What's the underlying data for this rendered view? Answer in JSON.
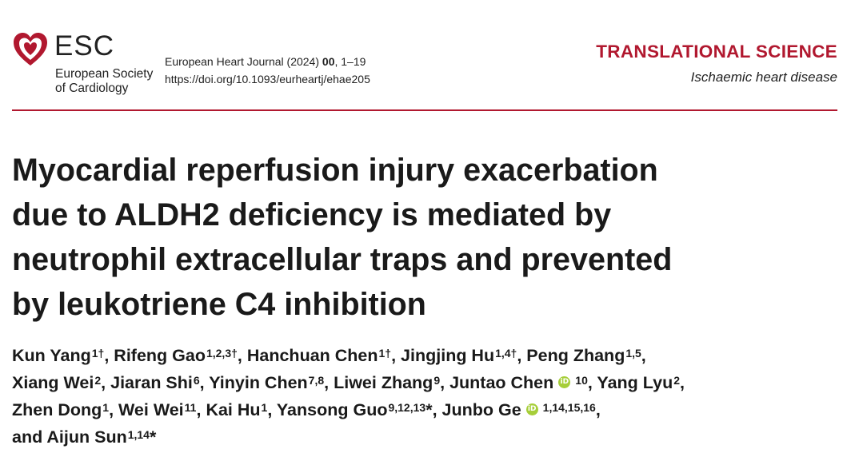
{
  "header": {
    "logo_icon": "esc-heart-logo-icon",
    "brand_color": "#b1182f",
    "orcid_color": "#a6ce39",
    "esc": "ESC",
    "society_line1": "European Society",
    "society_line2": "of Cardiology",
    "journal_line1_prefix": "European Heart Journal (2024) ",
    "journal_volume": "00",
    "journal_pages": ", 1–19",
    "doi": "https://doi.org/10.1093/eurheartj/ehae205",
    "section": "TRANSLATIONAL SCIENCE",
    "subsection": "Ischaemic heart disease"
  },
  "article": {
    "title_lines": [
      "Myocardial reperfusion injury exacerbation",
      "due to ALDH2 deficiency is mediated by",
      "neutrophil extracellular traps and prevented",
      "by leukotriene C4 inhibition"
    ],
    "orcid_label": "iD",
    "authors": [
      {
        "name": "Kun Yang",
        "sup": "1†",
        "sep": ", "
      },
      {
        "name": "Rifeng Gao",
        "sup": "1,2,3†",
        "sep": ", "
      },
      {
        "name": "Hanchuan Chen",
        "sup": "1†",
        "sep": ", "
      },
      {
        "name": "Jingjing Hu",
        "sup": "1,4†",
        "sep": ", "
      },
      {
        "name": "Peng Zhang",
        "sup": "1,5",
        "sep": ","
      },
      {
        "name": "Xiang Wei",
        "sup": "2",
        "sep": ", "
      },
      {
        "name": "Jiaran Shi",
        "sup": "6",
        "sep": ", "
      },
      {
        "name": "Yinyin Chen",
        "sup": "7,8",
        "sep": ", "
      },
      {
        "name": "Liwei Zhang",
        "sup": "9",
        "sep": ", "
      },
      {
        "name": "Juntao Chen",
        "sup": "10",
        "sep": ", "
      },
      {
        "name": "Yang Lyu",
        "sup": "2",
        "sep": ","
      },
      {
        "name": "Zhen Dong",
        "sup": "1",
        "sep": ", "
      },
      {
        "name": "Wei Wei",
        "sup": "11",
        "sep": ", "
      },
      {
        "name": "Kai Hu",
        "sup": "1",
        "sep": ", "
      },
      {
        "name": "Yansong Guo",
        "sup": "9,12,13",
        "star": "*",
        "sep": ", "
      },
      {
        "name": "Junbo Ge",
        "sup": "1,14,15,16",
        "sep": ","
      },
      {
        "name": "and Aijun Sun",
        "sup": "1,14",
        "star": "*",
        "sep": ""
      }
    ]
  }
}
